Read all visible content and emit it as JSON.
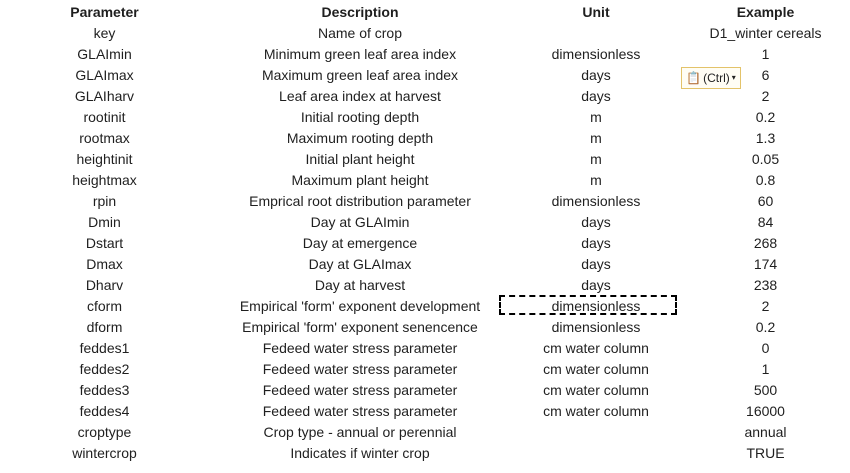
{
  "headers": [
    "Parameter",
    "Description",
    "Unit",
    "Example"
  ],
  "rows": [
    [
      "key",
      "Name of crop",
      "",
      "D1_winter cereals"
    ],
    [
      "GLAImin",
      "Minimum green leaf area index",
      "dimensionless",
      "1"
    ],
    [
      "GLAImax",
      "Maximum green leaf area index",
      "days",
      "6"
    ],
    [
      "GLAIharv",
      "Leaf area index at harvest",
      "days",
      "2"
    ],
    [
      "rootinit",
      "Initial rooting depth",
      "m",
      "0.2"
    ],
    [
      "rootmax",
      "Maximum rooting depth",
      "m",
      "1.3"
    ],
    [
      "heightinit",
      "Initial plant height",
      "m",
      "0.05"
    ],
    [
      "heightmax",
      "Maximum plant height",
      "m",
      "0.8"
    ],
    [
      "rpin",
      "Emprical root distribution parameter",
      "dimensionless",
      "60"
    ],
    [
      "Dmin",
      "Day at GLAImin",
      "days",
      "84"
    ],
    [
      "Dstart",
      "Day at emergence",
      "days",
      "268"
    ],
    [
      "Dmax",
      "Day at GLAImax",
      "days",
      "174"
    ],
    [
      "Dharv",
      "Day at harvest",
      "days",
      "238"
    ],
    [
      "cform",
      "Empirical 'form' exponent development",
      "dimensionless",
      "2"
    ],
    [
      "dform",
      "Empirical 'form' exponent senencence",
      "dimensionless",
      "0.2"
    ],
    [
      "feddes1",
      "Fedeed water stress parameter",
      "cm water column",
      "0"
    ],
    [
      "feddes2",
      "Fedeed water stress parameter",
      "cm water column",
      "1"
    ],
    [
      "feddes3",
      "Fedeed water stress parameter",
      "cm water column",
      "500"
    ],
    [
      "feddes4",
      "Fedeed water stress parameter",
      "cm water column",
      "16000"
    ],
    [
      "croptype",
      "Crop type - annual or perennial",
      "",
      "annual"
    ],
    [
      "wintercrop",
      "Indicates if winter crop",
      "",
      "TRUE"
    ]
  ],
  "paste_options": {
    "label": "(Ctrl)",
    "icon": "clipboard-icon",
    "caret": "▾"
  }
}
